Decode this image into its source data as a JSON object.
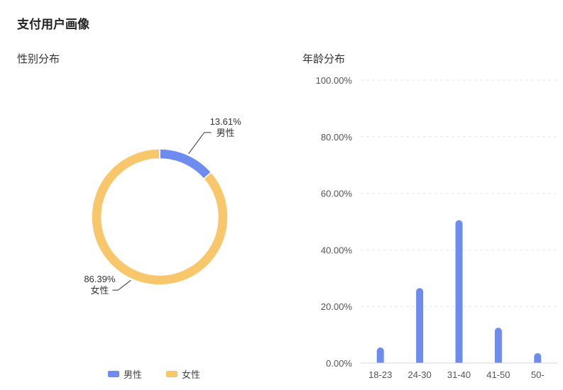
{
  "page": {
    "title": "支付用户画像"
  },
  "gender": {
    "title": "性别分布"
  },
  "age": {
    "title": "年龄分布"
  },
  "chart_data": [
    {
      "type": "pie",
      "variant": "donut",
      "title": "性别分布",
      "slices": [
        {
          "label": "男性",
          "value": 13.61,
          "display": "13.61%",
          "color": "#6e8bf0"
        },
        {
          "label": "女性",
          "value": 86.39,
          "display": "86.39%",
          "color": "#f8c76b"
        }
      ],
      "legend_position": "bottom"
    },
    {
      "type": "bar",
      "title": "年龄分布",
      "categories": [
        "18-23",
        "24-30",
        "31-40",
        "41-50",
        "50-"
      ],
      "values": [
        5.5,
        26.5,
        50.5,
        12.5,
        3.5
      ],
      "ylim": [
        0,
        100
      ],
      "yticks": [
        "0.00%",
        "20.00%",
        "40.00%",
        "60.00%",
        "80.00%",
        "100.00%"
      ],
      "grid": true,
      "bar_color": "#6e8bf0"
    }
  ]
}
